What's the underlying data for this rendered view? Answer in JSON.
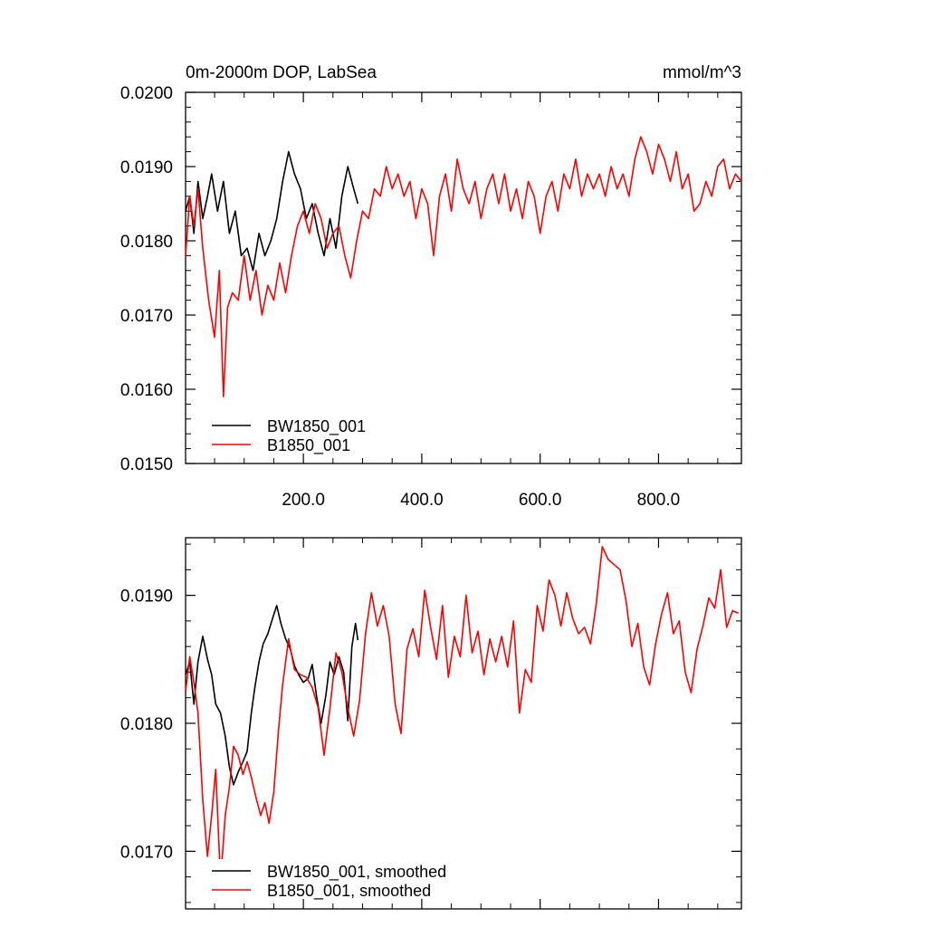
{
  "panels": [
    {
      "title_left": "0m-2000m DOP, LabSea",
      "title_right": "mmol/m^3",
      "legend": [
        "BW1850_001",
        "B1850_001"
      ]
    },
    {
      "title_left": "",
      "title_right": "",
      "legend": [
        "BW1850_001, smoothed",
        "B1850_001, smoothed"
      ]
    }
  ],
  "chart_data": [
    {
      "type": "line",
      "title": "0m-2000m DOP, LabSea",
      "units": "mmol/m^3",
      "xlim": [
        1,
        940
      ],
      "ylim": [
        0.015,
        0.02
      ],
      "x_ticks": [
        200,
        400,
        600,
        800
      ],
      "x_tick_labels": [
        "200.0",
        "400.0",
        "600.0",
        "800.0"
      ],
      "y_ticks": [
        0.015,
        0.016,
        0.017,
        0.018,
        0.019,
        0.02
      ],
      "y_tick_labels": [
        "0.0150",
        "0.0160",
        "0.0170",
        "0.0180",
        "0.0190",
        "0.0200"
      ],
      "grid": false,
      "legend_position": "bottom-left",
      "series": [
        {
          "name": "BW1850_001",
          "color": "#000000",
          "x": [
            1,
            8,
            15,
            22,
            30,
            38,
            45,
            55,
            65,
            75,
            85,
            95,
            105,
            115,
            125,
            135,
            145,
            155,
            165,
            175,
            185,
            195,
            205,
            215,
            225,
            235,
            245,
            255,
            265,
            275,
            285,
            292
          ],
          "y": [
            0.0184,
            0.0186,
            0.0181,
            0.0188,
            0.0183,
            0.0186,
            0.0189,
            0.0184,
            0.0188,
            0.0181,
            0.0184,
            0.0178,
            0.0179,
            0.0176,
            0.0181,
            0.0178,
            0.018,
            0.0183,
            0.0188,
            0.0192,
            0.0189,
            0.0187,
            0.0183,
            0.0185,
            0.0181,
            0.0178,
            0.0183,
            0.0179,
            0.0186,
            0.019,
            0.0187,
            0.0185
          ]
        },
        {
          "name": "B1850_001",
          "color": "#ff0000",
          "x": [
            1,
            8,
            15,
            22,
            30,
            40,
            50,
            58,
            65,
            72,
            80,
            90,
            100,
            110,
            120,
            130,
            140,
            150,
            160,
            170,
            180,
            190,
            200,
            210,
            220,
            230,
            240,
            250,
            260,
            270,
            280,
            290,
            300,
            310,
            320,
            330,
            340,
            350,
            360,
            370,
            380,
            390,
            400,
            410,
            420,
            430,
            440,
            450,
            460,
            470,
            480,
            490,
            500,
            510,
            520,
            530,
            540,
            550,
            560,
            570,
            580,
            590,
            600,
            610,
            620,
            630,
            640,
            650,
            660,
            670,
            680,
            690,
            700,
            710,
            720,
            730,
            740,
            750,
            760,
            770,
            780,
            790,
            800,
            810,
            820,
            830,
            840,
            850,
            860,
            870,
            880,
            890,
            900,
            910,
            920,
            930,
            940
          ],
          "y": [
            0.0178,
            0.0186,
            0.0182,
            0.0187,
            0.0179,
            0.0172,
            0.0167,
            0.0176,
            0.0159,
            0.0171,
            0.0173,
            0.0172,
            0.0178,
            0.0172,
            0.0176,
            0.017,
            0.0174,
            0.0172,
            0.0177,
            0.0173,
            0.0178,
            0.0182,
            0.0184,
            0.0181,
            0.0185,
            0.0183,
            0.0179,
            0.0181,
            0.0182,
            0.0178,
            0.0175,
            0.018,
            0.0184,
            0.0183,
            0.0187,
            0.0186,
            0.019,
            0.0187,
            0.0189,
            0.0186,
            0.0188,
            0.0183,
            0.0187,
            0.0185,
            0.0178,
            0.0186,
            0.0189,
            0.0184,
            0.0191,
            0.0187,
            0.0185,
            0.0188,
            0.0183,
            0.0187,
            0.0189,
            0.0185,
            0.0189,
            0.0184,
            0.0187,
            0.0183,
            0.0188,
            0.0186,
            0.0181,
            0.0186,
            0.0188,
            0.0184,
            0.0189,
            0.0187,
            0.0191,
            0.0186,
            0.0189,
            0.0187,
            0.0189,
            0.0186,
            0.019,
            0.0187,
            0.0189,
            0.0186,
            0.0191,
            0.0194,
            0.0192,
            0.0189,
            0.0193,
            0.0191,
            0.0188,
            0.0192,
            0.0187,
            0.0189,
            0.0184,
            0.0185,
            0.0188,
            0.0186,
            0.019,
            0.0191,
            0.0187,
            0.0189,
            0.0188
          ]
        }
      ]
    },
    {
      "type": "line",
      "xlim": [
        1,
        940
      ],
      "ylim": [
        0.01655,
        0.01945
      ],
      "x_ticks": [
        200,
        400,
        600,
        800
      ],
      "y_ticks": [
        0.017,
        0.018,
        0.019
      ],
      "y_tick_labels": [
        "0.0170",
        "0.0180",
        "0.0190"
      ],
      "grid": false,
      "legend_position": "bottom-left",
      "series": [
        {
          "name": "BW1850_001, smoothed",
          "color": "#000000",
          "x": [
            1,
            8,
            15,
            22,
            30,
            38,
            45,
            52,
            60,
            68,
            75,
            82,
            90,
            98,
            105,
            112,
            118,
            125,
            132,
            140,
            148,
            155,
            162,
            170,
            178,
            185,
            192,
            200,
            208,
            215,
            222,
            230,
            238,
            245,
            252,
            260,
            268,
            275,
            282,
            288,
            292
          ],
          "y": [
            0.01838,
            0.01848,
            0.01815,
            0.01848,
            0.01868,
            0.0185,
            0.01838,
            0.01815,
            0.01808,
            0.0179,
            0.01766,
            0.01752,
            0.01762,
            0.0177,
            0.01778,
            0.01808,
            0.01828,
            0.01848,
            0.01862,
            0.0187,
            0.01882,
            0.01892,
            0.01878,
            0.01866,
            0.01858,
            0.01845,
            0.01838,
            0.01832,
            0.01835,
            0.01846,
            0.01822,
            0.018,
            0.01822,
            0.01848,
            0.01838,
            0.01852,
            0.0184,
            0.01802,
            0.0186,
            0.01878,
            0.01865
          ]
        },
        {
          "name": "B1850_001, smoothed",
          "color": "#ff0000",
          "x": [
            1,
            8,
            15,
            22,
            30,
            38,
            45,
            52,
            60,
            68,
            75,
            82,
            90,
            98,
            105,
            112,
            120,
            128,
            135,
            142,
            150,
            158,
            165,
            175,
            185,
            195,
            205,
            215,
            225,
            235,
            245,
            255,
            265,
            275,
            285,
            295,
            305,
            315,
            325,
            335,
            345,
            355,
            365,
            375,
            385,
            395,
            405,
            415,
            425,
            435,
            445,
            455,
            465,
            475,
            485,
            495,
            505,
            515,
            525,
            535,
            545,
            555,
            565,
            575,
            585,
            595,
            605,
            615,
            625,
            635,
            645,
            655,
            665,
            675,
            685,
            695,
            705,
            715,
            725,
            735,
            745,
            755,
            765,
            775,
            785,
            795,
            805,
            815,
            825,
            835,
            845,
            855,
            865,
            875,
            885,
            895,
            905,
            915,
            925,
            935
          ],
          "y": [
            0.01825,
            0.01852,
            0.01832,
            0.01808,
            0.0174,
            0.01696,
            0.01728,
            0.01764,
            0.01676,
            0.01728,
            0.0175,
            0.01782,
            0.01775,
            0.0176,
            0.0177,
            0.01758,
            0.01742,
            0.01728,
            0.01738,
            0.01722,
            0.01746,
            0.01795,
            0.0183,
            0.01866,
            0.01842,
            0.01838,
            0.01836,
            0.01828,
            0.01812,
            0.01775,
            0.01812,
            0.01855,
            0.0184,
            0.01812,
            0.0179,
            0.01818,
            0.0187,
            0.01902,
            0.01876,
            0.01892,
            0.01868,
            0.01815,
            0.01792,
            0.01858,
            0.01874,
            0.01852,
            0.01904,
            0.01875,
            0.0185,
            0.01892,
            0.01836,
            0.01868,
            0.01852,
            0.019,
            0.01855,
            0.01872,
            0.01838,
            0.01866,
            0.01848,
            0.01868,
            0.01844,
            0.0188,
            0.01808,
            0.01842,
            0.01832,
            0.01892,
            0.01872,
            0.01912,
            0.019,
            0.01876,
            0.01902,
            0.01882,
            0.0187,
            0.01875,
            0.01862,
            0.01894,
            0.01938,
            0.01928,
            0.01924,
            0.0192,
            0.01896,
            0.0186,
            0.01878,
            0.01844,
            0.0183,
            0.01862,
            0.01885,
            0.01902,
            0.0187,
            0.0188,
            0.0184,
            0.01824,
            0.01858,
            0.01876,
            0.01898,
            0.0189,
            0.0192,
            0.01875,
            0.01888,
            0.01886
          ]
        }
      ]
    }
  ]
}
